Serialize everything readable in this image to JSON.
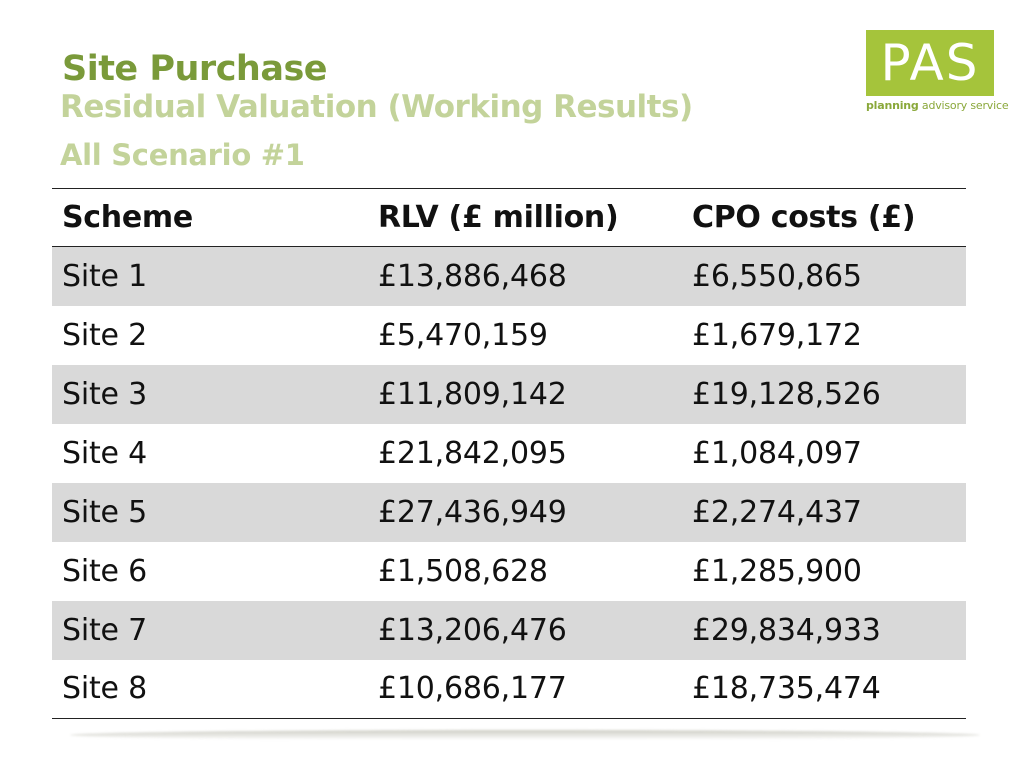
{
  "slide": {
    "title": "Site Purchase",
    "subtitle": "Residual Valuation (Working Results)",
    "scenario": "All Scenario #1"
  },
  "logo": {
    "mark": "PAS",
    "tagline_bold": "planning",
    "tagline_rest": " advisory service"
  },
  "table": {
    "headers": [
      "Scheme",
      "RLV (£ million)",
      "CPO costs (£)"
    ],
    "rows": [
      [
        "Site 1",
        "£13,886,468",
        "£6,550,865"
      ],
      [
        "Site 2",
        "£5,470,159",
        "£1,679,172"
      ],
      [
        "Site 3",
        "£11,809,142",
        "£19,128,526"
      ],
      [
        "Site 4",
        "£21,842,095",
        "£1,084,097"
      ],
      [
        "Site 5",
        "£27,436,949",
        "£2,274,437"
      ],
      [
        "Site 6",
        "£1,508,628",
        "£1,285,900"
      ],
      [
        "Site 7",
        "£13,206,476",
        "£29,834,933"
      ],
      [
        "Site 8",
        "£10,686,177",
        "£18,735,474"
      ]
    ]
  },
  "colors": {
    "title_green": "#7a9a3a",
    "subtitle_green": "#c3d39a",
    "logo_green": "#a5c43b",
    "row_shade": "#d9d9d9"
  }
}
